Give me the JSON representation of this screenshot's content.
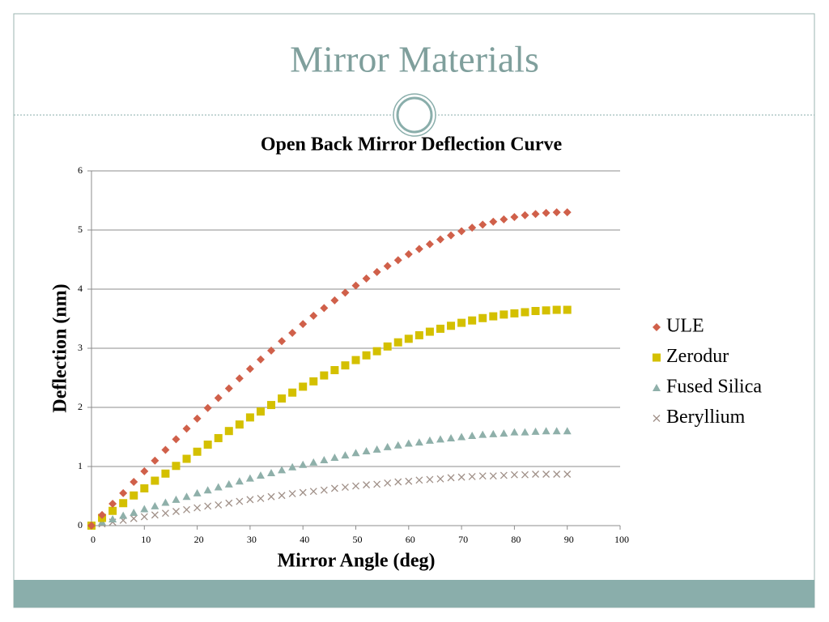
{
  "slide": {
    "title": "Mirror Materials"
  },
  "chart_data": {
    "type": "scatter",
    "title": "Open Back Mirror Deflection Curve",
    "x_label": "Mirror Angle (deg)",
    "y_label": "Deflection (nm)",
    "x": [
      0,
      2,
      4,
      6,
      8,
      10,
      12,
      14,
      16,
      18,
      20,
      22,
      24,
      26,
      28,
      30,
      32,
      34,
      36,
      38,
      40,
      42,
      44,
      46,
      48,
      50,
      52,
      54,
      56,
      58,
      60,
      62,
      64,
      66,
      68,
      70,
      72,
      74,
      76,
      78,
      80,
      82,
      84,
      86,
      88,
      90
    ],
    "series": [
      {
        "name": "ULE",
        "color": "#d0604a",
        "marker": "diamond",
        "values": [
          0,
          0.18,
          0.37,
          0.55,
          0.74,
          0.92,
          1.1,
          1.28,
          1.46,
          1.64,
          1.81,
          1.99,
          2.16,
          2.32,
          2.49,
          2.65,
          2.81,
          2.96,
          3.12,
          3.26,
          3.41,
          3.55,
          3.68,
          3.81,
          3.94,
          4.06,
          4.18,
          4.29,
          4.39,
          4.49,
          4.59,
          4.68,
          4.76,
          4.84,
          4.91,
          4.98,
          5.04,
          5.09,
          5.14,
          5.18,
          5.22,
          5.25,
          5.27,
          5.29,
          5.3,
          5.3
        ]
      },
      {
        "name": "Zerodur",
        "color": "#d4c000",
        "marker": "square",
        "values": [
          0,
          0.13,
          0.25,
          0.38,
          0.51,
          0.63,
          0.76,
          0.88,
          1.01,
          1.13,
          1.25,
          1.37,
          1.48,
          1.6,
          1.71,
          1.83,
          1.93,
          2.04,
          2.15,
          2.25,
          2.35,
          2.44,
          2.54,
          2.63,
          2.71,
          2.8,
          2.88,
          2.95,
          3.03,
          3.1,
          3.16,
          3.22,
          3.28,
          3.33,
          3.38,
          3.43,
          3.47,
          3.51,
          3.54,
          3.57,
          3.59,
          3.61,
          3.63,
          3.64,
          3.65,
          3.65
        ]
      },
      {
        "name": "Fused Silica",
        "color": "#8fb0aa",
        "marker": "triangle",
        "values": [
          0,
          0.06,
          0.11,
          0.17,
          0.22,
          0.28,
          0.33,
          0.39,
          0.44,
          0.49,
          0.55,
          0.6,
          0.65,
          0.7,
          0.75,
          0.8,
          0.85,
          0.89,
          0.94,
          0.99,
          1.03,
          1.07,
          1.11,
          1.15,
          1.19,
          1.23,
          1.26,
          1.29,
          1.33,
          1.36,
          1.39,
          1.41,
          1.44,
          1.46,
          1.48,
          1.5,
          1.52,
          1.54,
          1.55,
          1.56,
          1.58,
          1.58,
          1.59,
          1.6,
          1.6,
          1.6
        ]
      },
      {
        "name": "Beryllium",
        "color": "#a09088",
        "marker": "x",
        "values": [
          0,
          0.03,
          0.06,
          0.09,
          0.12,
          0.15,
          0.18,
          0.21,
          0.24,
          0.27,
          0.3,
          0.33,
          0.35,
          0.38,
          0.41,
          0.44,
          0.46,
          0.49,
          0.51,
          0.54,
          0.56,
          0.58,
          0.6,
          0.63,
          0.65,
          0.67,
          0.69,
          0.7,
          0.72,
          0.74,
          0.75,
          0.77,
          0.78,
          0.79,
          0.81,
          0.82,
          0.83,
          0.84,
          0.84,
          0.85,
          0.86,
          0.86,
          0.87,
          0.87,
          0.87,
          0.87
        ]
      }
    ],
    "xlim": [
      0,
      100
    ],
    "xticks": [
      0,
      10,
      20,
      30,
      40,
      50,
      60,
      70,
      80,
      90,
      100
    ],
    "ylim": [
      0,
      6
    ],
    "yticks": [
      0,
      1,
      2,
      3,
      4,
      5,
      6
    ],
    "grid": true,
    "legend": "right"
  }
}
